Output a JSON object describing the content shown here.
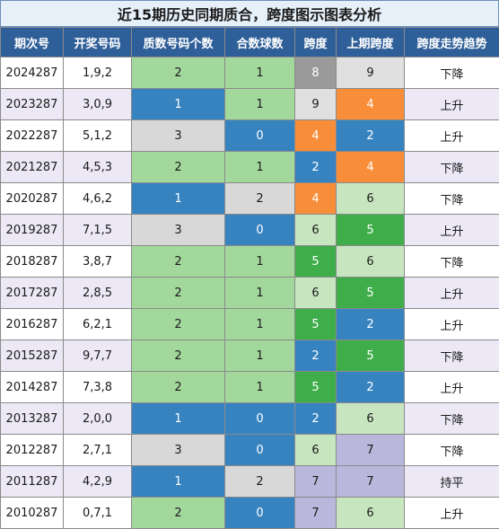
{
  "title": "近15期历史同期质合，跨度图示图表分析",
  "headers": [
    "期次号",
    "开奖号码",
    "质数号码个数",
    "合数球数",
    "跨度",
    "上期跨度",
    "跨度走势趋势"
  ],
  "colors": {
    "prime_1": "#3783c0",
    "prime_2": "#a3d89d",
    "prime_3": "#d8d8d8",
    "composite_0": "#3783c0",
    "composite_1": "#a3d89d",
    "composite_2": "#d8d8d8",
    "span_gray": "#9a9a9a",
    "span_plain": "#e0e0e0",
    "span_orange": "#f88d3a",
    "span_blue": "#3783c0",
    "span_green": "#3fae4a",
    "span_lightgreen": "#c7e6c0",
    "span_lavender": "#bab7dd"
  },
  "rows": [
    {
      "issue": "2024287",
      "numbers": "1,9,2",
      "prime": "2",
      "composite": "1",
      "span": "8",
      "span_style": "span_gray",
      "prev_span": "9",
      "prev_style": "span_plain",
      "trend": "下降"
    },
    {
      "issue": "2023287",
      "numbers": "3,0,9",
      "prime": "1",
      "composite": "1",
      "span": "9",
      "span_style": "span_plain",
      "prev_span": "4",
      "prev_style": "span_orange",
      "trend": "上升"
    },
    {
      "issue": "2022287",
      "numbers": "5,1,2",
      "prime": "3",
      "composite": "0",
      "span": "4",
      "span_style": "span_orange",
      "prev_span": "2",
      "prev_style": "span_blue",
      "trend": "上升"
    },
    {
      "issue": "2021287",
      "numbers": "4,5,3",
      "prime": "2",
      "composite": "1",
      "span": "2",
      "span_style": "span_blue",
      "prev_span": "4",
      "prev_style": "span_orange",
      "trend": "下降"
    },
    {
      "issue": "2020287",
      "numbers": "4,6,2",
      "prime": "1",
      "composite": "2",
      "span": "4",
      "span_style": "span_orange",
      "prev_span": "6",
      "prev_style": "span_lightgreen",
      "trend": "下降"
    },
    {
      "issue": "2019287",
      "numbers": "7,1,5",
      "prime": "3",
      "composite": "0",
      "span": "6",
      "span_style": "span_lightgreen",
      "prev_span": "5",
      "prev_style": "span_green",
      "trend": "上升"
    },
    {
      "issue": "2018287",
      "numbers": "3,8,7",
      "prime": "2",
      "composite": "1",
      "span": "5",
      "span_style": "span_green",
      "prev_span": "6",
      "prev_style": "span_lightgreen",
      "trend": "下降"
    },
    {
      "issue": "2017287",
      "numbers": "2,8,5",
      "prime": "2",
      "composite": "1",
      "span": "6",
      "span_style": "span_lightgreen",
      "prev_span": "5",
      "prev_style": "span_green",
      "trend": "上升"
    },
    {
      "issue": "2016287",
      "numbers": "6,2,1",
      "prime": "2",
      "composite": "1",
      "span": "5",
      "span_style": "span_green",
      "prev_span": "2",
      "prev_style": "span_blue",
      "trend": "上升"
    },
    {
      "issue": "2015287",
      "numbers": "9,7,7",
      "prime": "2",
      "composite": "1",
      "span": "2",
      "span_style": "span_blue",
      "prev_span": "5",
      "prev_style": "span_green",
      "trend": "下降"
    },
    {
      "issue": "2014287",
      "numbers": "7,3,8",
      "prime": "2",
      "composite": "1",
      "span": "5",
      "span_style": "span_green",
      "prev_span": "2",
      "prev_style": "span_blue",
      "trend": "上升"
    },
    {
      "issue": "2013287",
      "numbers": "2,0,0",
      "prime": "1",
      "composite": "0",
      "span": "2",
      "span_style": "span_blue",
      "prev_span": "6",
      "prev_style": "span_lightgreen",
      "trend": "下降"
    },
    {
      "issue": "2012287",
      "numbers": "2,7,1",
      "prime": "3",
      "composite": "0",
      "span": "6",
      "span_style": "span_lightgreen",
      "prev_span": "7",
      "prev_style": "span_lavender",
      "trend": "下降"
    },
    {
      "issue": "2011287",
      "numbers": "4,2,9",
      "prime": "1",
      "composite": "2",
      "span": "7",
      "span_style": "span_lavender",
      "prev_span": "7",
      "prev_style": "span_lavender",
      "trend": "持平"
    },
    {
      "issue": "2010287",
      "numbers": "0,7,1",
      "prime": "2",
      "composite": "0",
      "span": "7",
      "span_style": "span_lavender",
      "prev_span": "6",
      "prev_style": "span_lightgreen",
      "trend": "上升"
    }
  ]
}
